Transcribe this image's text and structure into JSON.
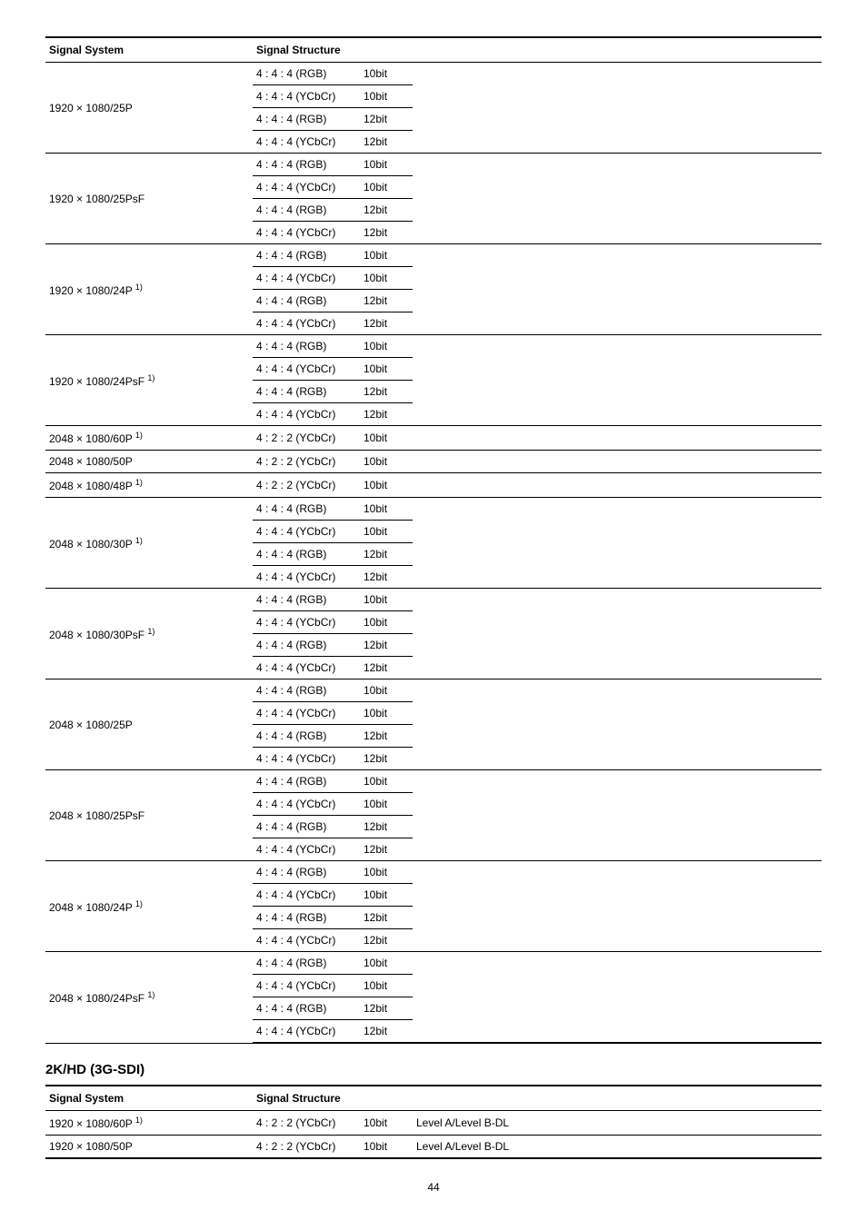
{
  "table1": {
    "headers": [
      "Signal System",
      "Signal Structure"
    ],
    "groups": [
      {
        "system": "1920 × 1080/25P",
        "sup": "",
        "rows": [
          {
            "s": "4 : 4 : 4 (RGB)",
            "b": "10bit"
          },
          {
            "s": "4 : 4 : 4 (YCbCr)",
            "b": "10bit"
          },
          {
            "s": "4 : 4 : 4 (RGB)",
            "b": "12bit"
          },
          {
            "s": "4 : 4 : 4 (YCbCr)",
            "b": "12bit"
          }
        ]
      },
      {
        "system": "1920 × 1080/25PsF",
        "sup": "",
        "rows": [
          {
            "s": "4 : 4 : 4 (RGB)",
            "b": "10bit"
          },
          {
            "s": "4 : 4 : 4 (YCbCr)",
            "b": "10bit"
          },
          {
            "s": "4 : 4 : 4 (RGB)",
            "b": "12bit"
          },
          {
            "s": "4 : 4 : 4 (YCbCr)",
            "b": "12bit"
          }
        ]
      },
      {
        "system": "1920 × 1080/24P ",
        "sup": "1)",
        "rows": [
          {
            "s": "4 : 4 : 4 (RGB)",
            "b": "10bit"
          },
          {
            "s": "4 : 4 : 4 (YCbCr)",
            "b": "10bit"
          },
          {
            "s": "4 : 4 : 4 (RGB)",
            "b": "12bit"
          },
          {
            "s": "4 : 4 : 4 (YCbCr)",
            "b": "12bit"
          }
        ]
      },
      {
        "system": "1920 × 1080/24PsF ",
        "sup": "1)",
        "rows": [
          {
            "s": "4 : 4 : 4 (RGB)",
            "b": "10bit"
          },
          {
            "s": "4 : 4 : 4 (YCbCr)",
            "b": "10bit"
          },
          {
            "s": "4 : 4 : 4 (RGB)",
            "b": "12bit"
          },
          {
            "s": "4 : 4 : 4 (YCbCr)",
            "b": "12bit"
          }
        ]
      },
      {
        "system": "2048 × 1080/60P ",
        "sup": "1)",
        "rows": [
          {
            "s": "4 : 2 : 2 (YCbCr)",
            "b": "10bit"
          }
        ]
      },
      {
        "system": "2048 × 1080/50P",
        "sup": "",
        "rows": [
          {
            "s": "4 : 2 : 2 (YCbCr)",
            "b": "10bit"
          }
        ]
      },
      {
        "system": "2048 × 1080/48P ",
        "sup": "1)",
        "rows": [
          {
            "s": "4 : 2 : 2 (YCbCr)",
            "b": "10bit"
          }
        ]
      },
      {
        "system": "2048 × 1080/30P ",
        "sup": "1)",
        "rows": [
          {
            "s": "4 : 4 : 4 (RGB)",
            "b": "10bit"
          },
          {
            "s": "4 : 4 : 4 (YCbCr)",
            "b": "10bit"
          },
          {
            "s": "4 : 4 : 4 (RGB)",
            "b": "12bit"
          },
          {
            "s": "4 : 4 : 4 (YCbCr)",
            "b": "12bit"
          }
        ]
      },
      {
        "system": "2048 × 1080/30PsF ",
        "sup": "1)",
        "rows": [
          {
            "s": "4 : 4 : 4 (RGB)",
            "b": "10bit"
          },
          {
            "s": "4 : 4 : 4 (YCbCr)",
            "b": "10bit"
          },
          {
            "s": "4 : 4 : 4 (RGB)",
            "b": "12bit"
          },
          {
            "s": "4 : 4 : 4 (YCbCr)",
            "b": "12bit"
          }
        ]
      },
      {
        "system": "2048 × 1080/25P",
        "sup": "",
        "rows": [
          {
            "s": "4 : 4 : 4 (RGB)",
            "b": "10bit"
          },
          {
            "s": "4 : 4 : 4 (YCbCr)",
            "b": "10bit"
          },
          {
            "s": "4 : 4 : 4 (RGB)",
            "b": "12bit"
          },
          {
            "s": "4 : 4 : 4 (YCbCr)",
            "b": "12bit"
          }
        ]
      },
      {
        "system": "2048 × 1080/25PsF",
        "sup": "",
        "rows": [
          {
            "s": "4 : 4 : 4 (RGB)",
            "b": "10bit"
          },
          {
            "s": "4 : 4 : 4 (YCbCr)",
            "b": "10bit"
          },
          {
            "s": "4 : 4 : 4 (RGB)",
            "b": "12bit"
          },
          {
            "s": "4 : 4 : 4 (YCbCr)",
            "b": "12bit"
          }
        ]
      },
      {
        "system": "2048 × 1080/24P ",
        "sup": "1)",
        "rows": [
          {
            "s": "4 : 4 : 4 (RGB)",
            "b": "10bit"
          },
          {
            "s": "4 : 4 : 4 (YCbCr)",
            "b": "10bit"
          },
          {
            "s": "4 : 4 : 4 (RGB)",
            "b": "12bit"
          },
          {
            "s": "4 : 4 : 4 (YCbCr)",
            "b": "12bit"
          }
        ]
      },
      {
        "system": "2048 × 1080/24PsF ",
        "sup": "1)",
        "rows": [
          {
            "s": "4 : 4 : 4 (RGB)",
            "b": "10bit"
          },
          {
            "s": "4 : 4 : 4 (YCbCr)",
            "b": "10bit"
          },
          {
            "s": "4 : 4 : 4 (RGB)",
            "b": "12bit"
          },
          {
            "s": "4 : 4 : 4 (YCbCr)",
            "b": "12bit"
          }
        ]
      }
    ]
  },
  "section_title": "2K/HD (3G-SDI)",
  "table2": {
    "headers": [
      "Signal System",
      "Signal Structure"
    ],
    "rows": [
      {
        "system": "1920 × 1080/60P ",
        "sup": "1)",
        "s": "4 : 2 : 2 (YCbCr)",
        "b": "10bit",
        "level": "Level A/Level B-DL"
      },
      {
        "system": "1920 × 1080/50P",
        "sup": "",
        "s": "4 : 2 : 2 (YCbCr)",
        "b": "10bit",
        "level": "Level A/Level B-DL"
      }
    ]
  },
  "page_number": "44"
}
